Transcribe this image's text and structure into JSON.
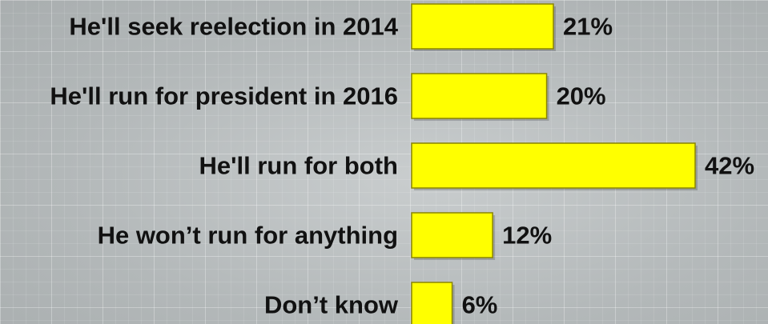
{
  "chart_data": {
    "type": "bar",
    "orientation": "horizontal",
    "categories": [
      "He'll seek reelection in 2014",
      "He'll run for president in 2016",
      "He'll run for both",
      "He won’t run for anything",
      "Don’t know"
    ],
    "values": [
      21,
      20,
      42,
      12,
      6
    ],
    "value_labels": [
      "21%",
      "20%",
      "42%",
      "12%",
      "6%"
    ],
    "title": "",
    "xlabel": "",
    "ylabel": "",
    "xlim": [
      0,
      42
    ],
    "grid": true,
    "legend": "none",
    "bar_color": "#ffff00",
    "bar_border_color": "#8a8500"
  }
}
